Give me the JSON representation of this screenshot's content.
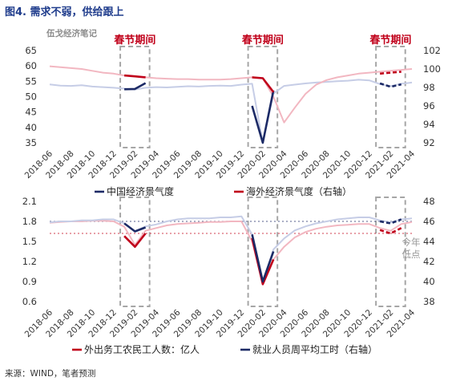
{
  "figure": {
    "title": "图4. 需求不弱，供给跟上",
    "watermark": "伍戈经济笔记",
    "source": "来源：WIND，笔者预测"
  },
  "colors": {
    "navy": "#1c2a66",
    "navy_light": "#c6cde6",
    "red": "#c0001a",
    "red_light": "#f2b7c1",
    "title_blue": "#1f3c8c",
    "box_gray": "#a6a6a6",
    "spring_label": "#c0001a",
    "axis_text": "#333333",
    "annotation_gray": "#999999"
  },
  "chart_data": [
    {
      "type": "line",
      "panel": "top",
      "x_dates": [
        "2018-06",
        "2018-07",
        "2018-08",
        "2018-09",
        "2018-10",
        "2018-11",
        "2018-12",
        "2019-01",
        "2019-02",
        "2019-03",
        "2019-04",
        "2019-05",
        "2019-06",
        "2019-07",
        "2019-08",
        "2019-09",
        "2019-10",
        "2019-11",
        "2019-12",
        "2020-01",
        "2020-02",
        "2020-03",
        "2020-04",
        "2020-05",
        "2020-06",
        "2020-07",
        "2020-08",
        "2020-09",
        "2020-10",
        "2020-11",
        "2020-12",
        "2021-01",
        "2021-02",
        "2021-03",
        "2021-04"
      ],
      "x_tick_labels": [
        "2018-06",
        "2018-08",
        "2018-10",
        "2018-12",
        "2019-02",
        "2019-04",
        "2019-06",
        "2019-08",
        "2019-10",
        "2019-12",
        "2020-02",
        "2020-04",
        "2020-06",
        "2020-08",
        "2020-10",
        "2020-12",
        "2021-02",
        "2021-04"
      ],
      "y_left": {
        "min": 35,
        "max": 65,
        "ticks": [
          35,
          40,
          45,
          50,
          55,
          60,
          65
        ]
      },
      "y_right": {
        "min": 92,
        "max": 102,
        "ticks": [
          92,
          94,
          96,
          98,
          100,
          102
        ]
      },
      "series": [
        {
          "name": "中国经济景气度",
          "axis": "left",
          "color_key": "navy",
          "faded_values": [
            54.0,
            53.6,
            53.5,
            53.7,
            53.3,
            53.1,
            52.9,
            52.6,
            52.3,
            52.9,
            53.1,
            53.0,
            53.2,
            53.4,
            53.3,
            53.5,
            53.6,
            53.5,
            53.9,
            54.2,
            35.0,
            51.0,
            53.5,
            53.9,
            54.3,
            54.6,
            54.8,
            55.0,
            55.2,
            55.5,
            55.3,
            54.1,
            53.4,
            54.2,
            54.6
          ],
          "highlights": [
            {
              "x": [
                "2019-01",
                "2019-02",
                "2019-03"
              ],
              "values": [
                52.4,
                52.5,
                54.4
              ],
              "dashed": false
            },
            {
              "x": [
                "2020-01",
                "2020-02",
                "2020-03"
              ],
              "values": [
                47.0,
                35.0,
                52.0
              ],
              "dashed": false
            },
            {
              "x": [
                "2021-01",
                "2021-02",
                "2021-03"
              ],
              "values": [
                54.3,
                53.2,
                54.0
              ],
              "dashed": true
            }
          ]
        },
        {
          "name": "海外经济景气度（右轴）",
          "axis": "right",
          "color_key": "red",
          "faded_values": [
            100.3,
            100.2,
            100.1,
            100.0,
            99.8,
            99.6,
            99.5,
            99.3,
            99.2,
            99.1,
            99.0,
            98.95,
            98.9,
            98.9,
            98.85,
            98.85,
            98.85,
            98.9,
            99.0,
            99.1,
            99.0,
            97.0,
            94.2,
            95.8,
            97.3,
            98.3,
            98.8,
            99.1,
            99.3,
            99.5,
            99.6,
            99.7,
            99.8,
            99.9,
            100.0
          ],
          "highlights": [
            {
              "x": [
                "2019-01",
                "2019-02",
                "2019-03"
              ],
              "values": [
                99.3,
                99.2,
                99.1
              ],
              "dashed": false
            },
            {
              "x": [
                "2020-01",
                "2020-02",
                "2020-03"
              ],
              "values": [
                99.1,
                99.0,
                97.5
              ],
              "dashed": false
            },
            {
              "x": [
                "2021-01",
                "2021-02",
                "2021-03"
              ],
              "values": [
                99.5,
                99.6,
                99.7
              ],
              "dashed": true
            }
          ]
        }
      ],
      "spring_festival_windows": [
        {
          "label": "春节期间",
          "from": "2019-01",
          "to": "2019-03"
        },
        {
          "label": "春节期间",
          "from": "2020-01",
          "to": "2020-03"
        },
        {
          "label": "春节期间",
          "from": "2021-01",
          "to": "2021-03"
        }
      ],
      "legend_position": "bottom"
    },
    {
      "type": "line",
      "panel": "bottom",
      "x_dates": [
        "2018-06",
        "2018-07",
        "2018-08",
        "2018-09",
        "2018-10",
        "2018-11",
        "2018-12",
        "2019-01",
        "2019-02",
        "2019-03",
        "2019-04",
        "2019-05",
        "2019-06",
        "2019-07",
        "2019-08",
        "2019-09",
        "2019-10",
        "2019-11",
        "2019-12",
        "2020-01",
        "2020-02",
        "2020-03",
        "2020-04",
        "2020-05",
        "2020-06",
        "2020-07",
        "2020-08",
        "2020-09",
        "2020-10",
        "2020-11",
        "2020-12",
        "2021-01",
        "2021-02",
        "2021-03",
        "2021-04"
      ],
      "x_tick_labels": [
        "2018-06",
        "2018-08",
        "2018-10",
        "2018-12",
        "2019-02",
        "2019-04",
        "2019-06",
        "2019-08",
        "2019-10",
        "2019-12",
        "2020-02",
        "2020-04",
        "2020-06",
        "2020-08",
        "2020-10",
        "2020-12",
        "2021-02",
        "2021-04"
      ],
      "y_left": {
        "min": 0.6,
        "max": 2.1,
        "ticks": [
          0.6,
          0.9,
          1.2,
          1.5,
          1.8,
          2.1
        ]
      },
      "y_right": {
        "min": 38,
        "max": 48,
        "ticks": [
          38,
          40,
          42,
          44,
          46,
          48
        ]
      },
      "series": [
        {
          "name": "外出务工农民工人数：亿人",
          "axis": "left",
          "color_key": "red",
          "faded_values": [
            1.78,
            1.79,
            1.8,
            1.8,
            1.81,
            1.81,
            1.8,
            1.72,
            1.45,
            1.66,
            1.7,
            1.74,
            1.76,
            1.77,
            1.78,
            1.79,
            1.79,
            1.8,
            1.8,
            1.5,
            0.86,
            1.23,
            1.42,
            1.56,
            1.64,
            1.69,
            1.72,
            1.74,
            1.75,
            1.76,
            1.76,
            1.7,
            1.66,
            1.76,
            1.79
          ],
          "reference_level": 1.62,
          "reference_label": "今年低点",
          "highlights": [
            {
              "x": [
                "2019-01",
                "2019-02",
                "2019-03"
              ],
              "values": [
                1.58,
                1.42,
                1.62
              ],
              "dashed": false
            },
            {
              "x": [
                "2020-01",
                "2020-02",
                "2020-03"
              ],
              "values": [
                1.55,
                0.86,
                1.23
              ],
              "dashed": false
            },
            {
              "x": [
                "2021-01",
                "2021-02",
                "2021-03"
              ],
              "values": [
                1.67,
                1.62,
                1.7
              ],
              "dashed": true
            }
          ]
        },
        {
          "name": "就业人员周平均工时（右轴）",
          "axis": "right",
          "color_key": "navy",
          "faded_values": [
            45.9,
            46.0,
            46.0,
            46.1,
            46.1,
            46.2,
            46.2,
            45.8,
            45.0,
            45.5,
            45.7,
            46.0,
            46.2,
            46.3,
            46.3,
            46.3,
            46.4,
            46.4,
            46.5,
            44.7,
            40.0,
            43.2,
            44.3,
            45.1,
            45.5,
            45.8,
            46.0,
            46.2,
            46.3,
            46.4,
            46.4,
            46.1,
            45.9,
            46.2,
            46.3
          ],
          "reference_level": 46.0,
          "highlights": [
            {
              "x": [
                "2019-01",
                "2019-02",
                "2019-03"
              ],
              "values": [
                45.8,
                45.0,
                45.4
              ],
              "dashed": false
            },
            {
              "x": [
                "2020-01",
                "2020-02",
                "2020-03"
              ],
              "values": [
                44.7,
                40.0,
                43.0
              ],
              "dashed": false
            },
            {
              "x": [
                "2021-01",
                "2021-02",
                "2021-03"
              ],
              "values": [
                46.0,
                45.8,
                46.2
              ],
              "dashed": true
            }
          ]
        }
      ],
      "spring_festival_windows": [
        {
          "from": "2019-01",
          "to": "2019-03"
        },
        {
          "from": "2020-01",
          "to": "2020-03"
        },
        {
          "from": "2021-01",
          "to": "2021-03"
        }
      ],
      "legend_position": "bottom"
    }
  ]
}
